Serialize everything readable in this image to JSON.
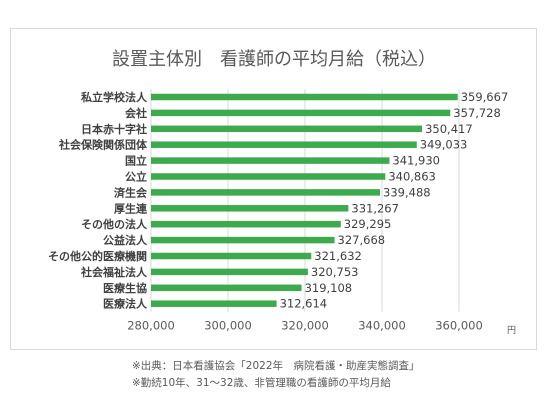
{
  "chart_data": {
    "type": "bar",
    "orientation": "horizontal",
    "title": "設置主体別　看護師の平均月給（税込）",
    "xlabel": "円",
    "ylabel": "",
    "xlim": [
      280000,
      360000
    ],
    "x_ticks": [
      280000,
      300000,
      320000,
      340000,
      360000
    ],
    "x_tick_labels": [
      "280,000",
      "300,000",
      "320,000",
      "340,000",
      "360,000"
    ],
    "grid": true,
    "bar_color": "#3daa4e",
    "categories": [
      "私立学校法人",
      "会社",
      "日本赤十字社",
      "社会保険関係団体",
      "国立",
      "公立",
      "済生会",
      "厚生連",
      "その他の法人",
      "公益法人",
      "その他公的医療機関",
      "社会福祉法人",
      "医療生協",
      "医療法人"
    ],
    "values": [
      359667,
      357728,
      350417,
      349033,
      341930,
      340863,
      339488,
      331267,
      329295,
      327668,
      321632,
      320753,
      319108,
      312614
    ],
    "value_labels": [
      "359,667",
      "357,728",
      "350,417",
      "349,033",
      "341,930",
      "340,863",
      "339,488",
      "331,267",
      "329,295",
      "327,668",
      "321,632",
      "320,753",
      "319,108",
      "312,614"
    ]
  },
  "footnotes": {
    "source": "※出典：日本看護協会「2022年　病院看護・助産実態調査」",
    "note": "※勤続10年、31～32歳、非管理職の看護師の平均月給"
  }
}
